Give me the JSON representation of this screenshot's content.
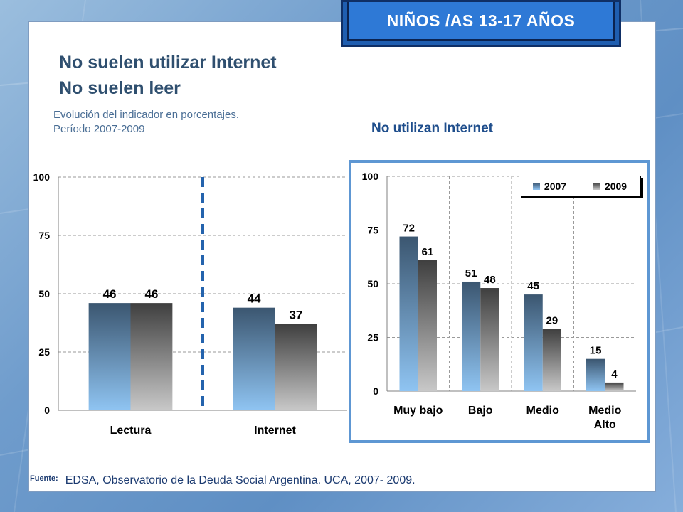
{
  "header": {
    "title": "NIÑOS /AS 13-17 AÑOS"
  },
  "titles": {
    "line1": "No suelen utilizar  Internet",
    "line2": "No suelen leer",
    "sub1": "Evolución del indicador en porcentajes.",
    "sub2": "Período 2007-2009",
    "right_chart_title": "No utilizan Internet"
  },
  "source": {
    "label": "Fuente:",
    "text": "EDSA, Observatorio de la Deuda Social Argentina. UCA, 2007- 2009."
  },
  "colors": {
    "series_2007_top": "#3b5670",
    "series_2007_bottom": "#8fc4f2",
    "series_2009_top": "#3f3f3f",
    "series_2009_bottom": "#c8c8c8",
    "divider": "#2463ad",
    "frame": "#5e97d3"
  },
  "chart_data": [
    {
      "type": "bar",
      "title": "",
      "categories": [
        "Lectura",
        "Internet"
      ],
      "series": [
        {
          "name": "",
          "values": [
            46,
            44
          ]
        },
        {
          "name": "",
          "values": [
            46,
            37
          ]
        }
      ],
      "ylim": [
        0,
        100
      ],
      "yticks": [
        "0",
        "25",
        "50",
        "75",
        "100"
      ],
      "grid": true,
      "legend": "none"
    },
    {
      "type": "bar",
      "title": "No utilizan Internet",
      "categories": [
        "Muy bajo",
        "Bajo",
        "Medio",
        "Medio Alto"
      ],
      "category_lines": [
        [
          "Muy bajo"
        ],
        [
          "Bajo"
        ],
        [
          "Medio"
        ],
        [
          "Medio",
          "Alto"
        ]
      ],
      "series": [
        {
          "name": "2007",
          "values": [
            72,
            51,
            45,
            15
          ]
        },
        {
          "name": "2009",
          "values": [
            61,
            48,
            29,
            4
          ]
        }
      ],
      "ylim": [
        0,
        100
      ],
      "yticks": [
        "0",
        "25",
        "50",
        "75",
        "100"
      ],
      "grid": true,
      "legend": "top-right"
    }
  ]
}
